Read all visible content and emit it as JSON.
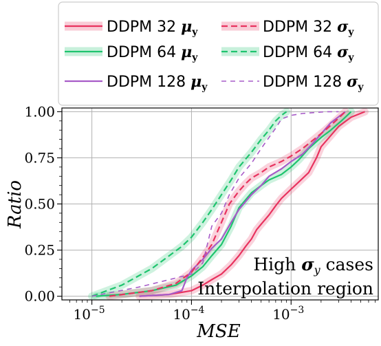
{
  "chart_data": {
    "type": "line",
    "title": "",
    "xlabel": "MSE",
    "ylabel": "Ratio",
    "xscale": "log",
    "xlim": [
      5e-06,
      0.0075
    ],
    "ylim": [
      -0.02,
      1.02
    ],
    "grid": true,
    "legend_position": "top",
    "x_ticks": [
      {
        "value": 1e-05,
        "base": "10",
        "exp": "−5"
      },
      {
        "value": 0.0001,
        "base": "10",
        "exp": "−4"
      },
      {
        "value": 0.001,
        "base": "10",
        "exp": "−3"
      }
    ],
    "y_ticks": [
      {
        "value": 0.0,
        "label": "0.00"
      },
      {
        "value": 0.25,
        "label": "0.25"
      },
      {
        "value": 0.5,
        "label": "0.50"
      },
      {
        "value": 0.75,
        "label": "0.75"
      },
      {
        "value": 1.0,
        "label": "1.00"
      }
    ],
    "annotations": [
      {
        "parts": [
          "High ",
          "σ",
          "y",
          " cases"
        ]
      },
      {
        "text": "Interpolation region"
      }
    ],
    "series": [
      {
        "name": "DDPM 32 μy",
        "legend_main": "DDPM 32 ",
        "legend_sym": "μ",
        "legend_sub": "y",
        "color": "#e8325e",
        "style": "solid",
        "band": true,
        "x": [
          3e-05,
          6e-05,
          0.0001,
          0.00013,
          0.00016,
          0.0002,
          0.00025,
          0.0003,
          0.00035,
          0.0004,
          0.00045,
          0.0005,
          0.0006,
          0.0007,
          0.0008,
          0.001,
          0.0012,
          0.0015,
          0.0018,
          0.002,
          0.0025,
          0.003,
          0.004,
          0.0055
        ],
        "y": [
          0.0,
          0.01,
          0.03,
          0.06,
          0.09,
          0.12,
          0.17,
          0.22,
          0.27,
          0.31,
          0.36,
          0.39,
          0.44,
          0.49,
          0.53,
          0.58,
          0.62,
          0.67,
          0.75,
          0.81,
          0.87,
          0.92,
          0.97,
          1.0
        ]
      },
      {
        "name": "DDPM 64 μy",
        "legend_main": "DDPM 64 ",
        "legend_sym": "μ",
        "legend_sub": "y",
        "color": "#1ec46e",
        "style": "solid",
        "band": true,
        "x": [
          1.1e-05,
          2e-05,
          4e-05,
          7e-05,
          0.0001,
          0.00013,
          0.00016,
          0.0002,
          0.00025,
          0.0003,
          0.0004,
          0.0005,
          0.0006,
          0.0008,
          0.001,
          0.0012,
          0.0015,
          0.002,
          0.0025,
          0.0032,
          0.004
        ],
        "y": [
          0.0,
          0.01,
          0.03,
          0.06,
          0.11,
          0.16,
          0.22,
          0.28,
          0.38,
          0.48,
          0.56,
          0.6,
          0.63,
          0.66,
          0.7,
          0.74,
          0.8,
          0.86,
          0.9,
          0.95,
          1.0
        ]
      },
      {
        "name": "DDPM 128 μy",
        "legend_main": "DDPM 128 ",
        "legend_sym": "μ",
        "legend_sub": "y",
        "color": "#a75bc8",
        "style": "solid",
        "band": false,
        "x": [
          3e-05,
          6e-05,
          8e-05,
          9e-05,
          0.0001,
          0.00013,
          0.00016,
          0.0002,
          0.00025,
          0.0003,
          0.0004,
          0.0005,
          0.0006,
          0.0008,
          0.001,
          0.0013,
          0.0016,
          0.002,
          0.0025,
          0.0035
        ],
        "y": [
          0.0,
          0.01,
          0.03,
          0.1,
          0.14,
          0.2,
          0.26,
          0.31,
          0.4,
          0.47,
          0.55,
          0.6,
          0.65,
          0.69,
          0.73,
          0.77,
          0.82,
          0.88,
          0.94,
          1.0
        ]
      },
      {
        "name": "DDPM 32 σy",
        "legend_main": "DDPM 32 ",
        "legend_sym": "σ",
        "legend_sub": "y",
        "color": "#e8325e",
        "style": "dashed",
        "band": true,
        "x": [
          1.5e-05,
          4e-05,
          7e-05,
          0.0001,
          0.00013,
          0.00016,
          0.0002,
          0.00024,
          0.0003,
          0.00035,
          0.0004,
          0.0005,
          0.0006,
          0.0008,
          0.001,
          0.0013,
          0.0017,
          0.0022,
          0.0028,
          0.0035
        ],
        "y": [
          0.0,
          0.03,
          0.07,
          0.13,
          0.21,
          0.28,
          0.4,
          0.5,
          0.57,
          0.61,
          0.64,
          0.67,
          0.7,
          0.73,
          0.76,
          0.8,
          0.85,
          0.9,
          0.95,
          1.0
        ]
      },
      {
        "name": "DDPM 64 σy",
        "legend_main": "DDPM 64 ",
        "legend_sym": "σ",
        "legend_sub": "y",
        "color": "#1ec46e",
        "style": "dashed",
        "band": true,
        "x": [
          1e-05,
          2e-05,
          4e-05,
          6e-05,
          8e-05,
          0.0001,
          0.00013,
          0.00016,
          0.0002,
          0.00025,
          0.0003,
          0.0004,
          0.0005,
          0.0006,
          0.0007,
          0.0008,
          0.0009
        ],
        "y": [
          0.0,
          0.06,
          0.15,
          0.22,
          0.27,
          0.32,
          0.4,
          0.47,
          0.55,
          0.63,
          0.7,
          0.78,
          0.85,
          0.9,
          0.95,
          0.98,
          1.0
        ]
      },
      {
        "name": "DDPM 128 σy",
        "legend_main": "DDPM 128 ",
        "legend_sym": "σ",
        "legend_sub": "y",
        "color": "#a75bc8",
        "style": "dashed-thin",
        "band": false,
        "x": [
          1e-05,
          3e-05,
          6e-05,
          0.0001,
          0.00013,
          0.00016,
          0.0002,
          0.00024,
          0.0003,
          0.0004,
          0.0005,
          0.0006,
          0.0007,
          0.0008,
          0.001,
          0.0013,
          0.0017,
          0.0022,
          0.003
        ],
        "y": [
          0.0,
          0.05,
          0.09,
          0.12,
          0.18,
          0.38,
          0.45,
          0.55,
          0.64,
          0.72,
          0.8,
          0.86,
          0.91,
          0.96,
          0.98,
          0.99,
          0.995,
          1.0,
          1.0
        ]
      }
    ]
  }
}
